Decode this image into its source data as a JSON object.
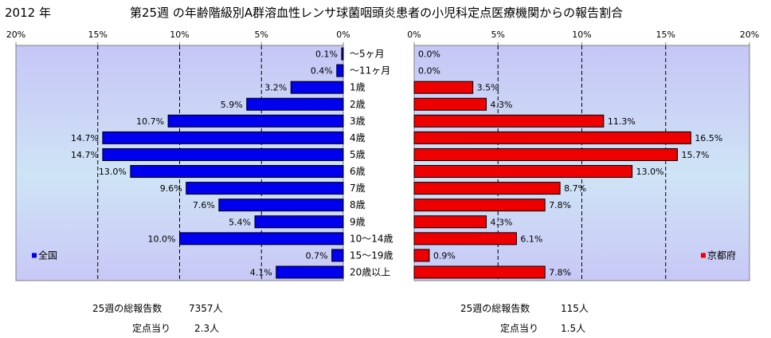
{
  "header": {
    "year": "2012 年",
    "title": "第25週 の年齢階級別A群溶血性レンサ球菌咽頭炎患者の小児科定点医療機関からの報告割合"
  },
  "chart_data": {
    "type": "bar",
    "orientation": "horizontal",
    "categories": [
      "〜5ヶ月",
      "〜11ヶ月",
      "1歳",
      "2歳",
      "3歳",
      "4歳",
      "5歳",
      "6歳",
      "7歳",
      "8歳",
      "9歳",
      "10〜14歳",
      "15〜19歳",
      "20歳以上"
    ],
    "unit": "%",
    "series": [
      {
        "name": "全国",
        "values": [
          0.1,
          0.4,
          3.2,
          5.9,
          10.7,
          14.7,
          14.7,
          13.0,
          9.6,
          7.6,
          5.4,
          10.0,
          0.7,
          4.1
        ],
        "labels": [
          "0.1%",
          "0.4%",
          "3.2%",
          "5.9%",
          "10.7%",
          "14.7%",
          "14.7%",
          "13.0%",
          "9.6%",
          "7.6%",
          "5.4%",
          "10.0%",
          "0.7%",
          "4.1%"
        ],
        "color": "#0000ee",
        "direction": "left"
      },
      {
        "name": "京都府",
        "values": [
          0.0,
          0.0,
          3.5,
          4.3,
          11.3,
          16.5,
          15.7,
          13.0,
          8.7,
          7.8,
          4.3,
          6.1,
          0.9,
          7.8
        ],
        "labels": [
          "0.0%",
          "0.0%",
          "3.5%",
          "4.3%",
          "11.3%",
          "16.5%",
          "15.7%",
          "13.0%",
          "8.7%",
          "7.8%",
          "4.3%",
          "6.1%",
          "0.9%",
          "7.8%"
        ],
        "color": "#ee0000",
        "direction": "right"
      }
    ],
    "xlim": [
      0,
      20
    ],
    "left_ticks": [
      "20%",
      "15%",
      "10%",
      "5%",
      "0%"
    ],
    "right_ticks": [
      "0%",
      "5%",
      "10%",
      "15%",
      "20%"
    ],
    "plot_background": "gradient light-blue to lavender",
    "grid": "vertical dashed",
    "legend_placement": "bottom-inside"
  },
  "footer": {
    "left_total_label": "25週の総報告数",
    "left_total_value": "7357人",
    "left_per_label": "定点当り",
    "left_per_value": "2.3人",
    "right_total_label": "25週の総報告数",
    "right_total_value": "115人",
    "right_per_label": "定点当り",
    "right_per_value": "1.5人"
  }
}
